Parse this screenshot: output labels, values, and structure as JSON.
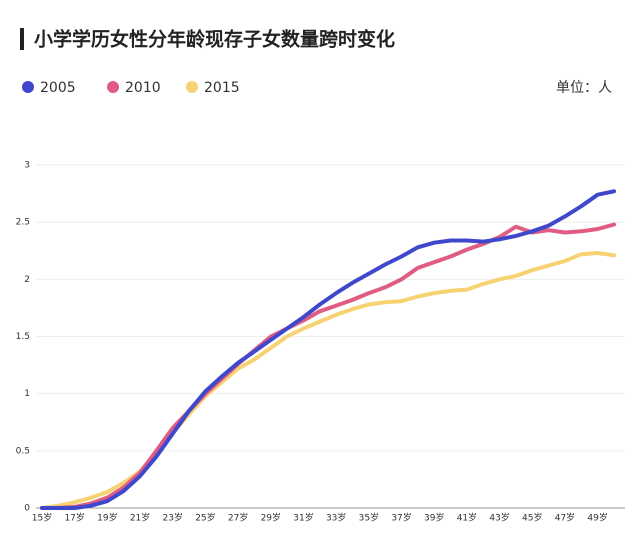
{
  "chart_data": {
    "type": "line",
    "title": "小学学历女性分年龄现存子女数量跨时变化",
    "unit_label": "单位：人",
    "categories": [
      "15岁",
      null,
      "17岁",
      null,
      "19岁",
      null,
      "21岁",
      null,
      "23岁",
      null,
      "25岁",
      null,
      "27岁",
      null,
      "29岁",
      null,
      "31岁",
      null,
      "33岁",
      null,
      "35岁",
      null,
      "37岁",
      null,
      "39岁",
      null,
      "41岁",
      null,
      "43岁",
      null,
      "45岁",
      null,
      "47岁",
      null,
      "49岁",
      null
    ],
    "series": [
      {
        "name": "2005",
        "color": "#3f48cc",
        "values": [
          0,
          0,
          0,
          0.02,
          0.06,
          0.15,
          0.28,
          0.45,
          0.65,
          0.85,
          1.02,
          1.15,
          1.27,
          1.37,
          1.47,
          1.57,
          1.67,
          1.78,
          1.88,
          1.97,
          2.05,
          2.13,
          2.2,
          2.28,
          2.32,
          2.34,
          2.34,
          2.33,
          2.35,
          2.38,
          2.42,
          2.47,
          2.55,
          2.64,
          2.74,
          2.77
        ]
      },
      {
        "name": "2010",
        "color": "#e05c82",
        "values": [
          0,
          0,
          0.01,
          0.04,
          0.09,
          0.18,
          0.31,
          0.5,
          0.7,
          0.85,
          1.0,
          1.13,
          1.26,
          1.38,
          1.5,
          1.57,
          1.64,
          1.72,
          1.77,
          1.82,
          1.88,
          1.93,
          2.0,
          2.1,
          2.15,
          2.2,
          2.26,
          2.31,
          2.37,
          2.46,
          2.41,
          2.43,
          2.41,
          2.42,
          2.44,
          2.48
        ]
      },
      {
        "name": "2015",
        "color": "#f7d273",
        "values": [
          0,
          0.02,
          0.05,
          0.09,
          0.14,
          0.22,
          0.32,
          0.48,
          0.66,
          0.82,
          0.98,
          1.1,
          1.22,
          1.3,
          1.4,
          1.5,
          1.57,
          1.63,
          1.69,
          1.74,
          1.78,
          1.8,
          1.81,
          1.85,
          1.88,
          1.9,
          1.91,
          1.96,
          2.0,
          2.03,
          2.08,
          2.12,
          2.16,
          2.22,
          2.23,
          2.21
        ]
      }
    ],
    "ylim": [
      0,
      3
    ],
    "yticks": [
      0,
      0.5,
      1,
      1.5,
      2,
      2.5,
      3
    ],
    "grid": true
  }
}
